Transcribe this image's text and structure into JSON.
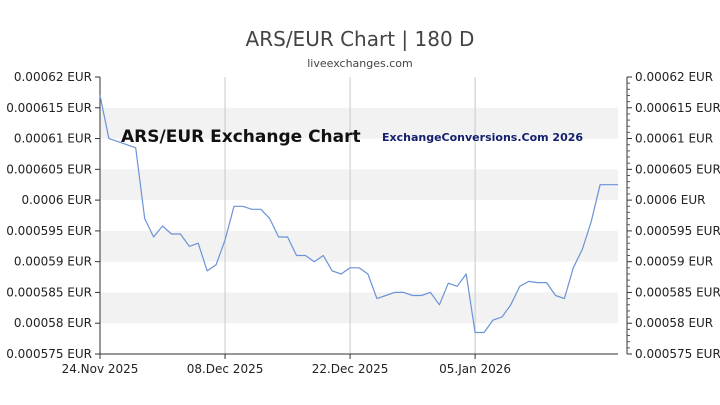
{
  "header": {
    "title": "ARS/EUR Chart | 180 D",
    "subtitle": "liveexchanges.com"
  },
  "watermarks": {
    "left": "ARS/EUR Exchange Chart",
    "right": "ExchangeConversions.Com 2026"
  },
  "colors": {
    "line": "#6b93d6",
    "band": "#f2f2f2",
    "vgrid": "#c8c8c8"
  },
  "chart_data": {
    "type": "line",
    "title": "ARS/EUR Chart | 180 D",
    "subtitle": "liveexchanges.com",
    "ylim": [
      0.000575,
      0.00062
    ],
    "yticks": [
      0.00062,
      0.000615,
      0.00061,
      0.000605,
      0.0006,
      0.000595,
      0.00059,
      0.000585,
      0.00058,
      0.000575
    ],
    "ytick_labels": [
      "0.00062 EUR",
      "0.000615 EUR",
      "0.00061 EUR",
      "0.000605 EUR",
      "0.0006 EUR",
      "0.000595 EUR",
      "0.00059 EUR",
      "0.000585 EUR",
      "0.00058 EUR",
      "0.000575 EUR"
    ],
    "xlim": [
      "2025-11-24",
      "2026-01-21"
    ],
    "xticks": [
      "2025-11-24",
      "2025-12-08",
      "2025-12-22",
      "2026-01-05"
    ],
    "xtick_labels": [
      "24.Nov 2025",
      "08.Dec 2025",
      "22.Dec 2025",
      "05.Jan 2026"
    ],
    "grid": "alternating horizontal bands, vertical lines at x ticks",
    "legend": "none",
    "series": [
      {
        "x": [
          "2025-11-24",
          "2025-11-25",
          "2025-11-26",
          "2025-11-27",
          "2025-11-28",
          "2025-11-29",
          "2025-11-30",
          "2025-12-01",
          "2025-12-02",
          "2025-12-03",
          "2025-12-04",
          "2025-12-05",
          "2025-12-06",
          "2025-12-07",
          "2025-12-08",
          "2025-12-09",
          "2025-12-10",
          "2025-12-11",
          "2025-12-12",
          "2025-12-13",
          "2025-12-14",
          "2025-12-15",
          "2025-12-16",
          "2025-12-17",
          "2025-12-18",
          "2025-12-19",
          "2025-12-20",
          "2025-12-21",
          "2025-12-22",
          "2025-12-23",
          "2025-12-24",
          "2025-12-25",
          "2025-12-26",
          "2025-12-27",
          "2025-12-28",
          "2025-12-29",
          "2025-12-30",
          "2025-12-31",
          "2026-01-01",
          "2026-01-02",
          "2026-01-03",
          "2026-01-04",
          "2026-01-05",
          "2026-01-06",
          "2026-01-07",
          "2026-01-08",
          "2026-01-09",
          "2026-01-10",
          "2026-01-11",
          "2026-01-12",
          "2026-01-13",
          "2026-01-14",
          "2026-01-15",
          "2026-01-16",
          "2026-01-17",
          "2026-01-18",
          "2026-01-19",
          "2026-01-20",
          "2026-01-21"
        ],
        "values": [
          0.000617,
          0.00061,
          0.0006095,
          0.000609,
          0.0006085,
          0.000597,
          0.000594,
          0.0005958,
          0.0005945,
          0.0005945,
          0.0005925,
          0.000593,
          0.0005885,
          0.0005895,
          0.0005935,
          0.000599,
          0.000599,
          0.0005985,
          0.0005985,
          0.000597,
          0.000594,
          0.000594,
          0.000591,
          0.000591,
          0.00059,
          0.000591,
          0.0005885,
          0.000588,
          0.000589,
          0.000589,
          0.000588,
          0.000584,
          0.0005845,
          0.000585,
          0.000585,
          0.0005845,
          0.0005845,
          0.000585,
          0.000583,
          0.0005865,
          0.000586,
          0.000588,
          0.0005785,
          0.0005785,
          0.0005805,
          0.000581,
          0.000583,
          0.000586,
          0.0005868,
          0.0005866,
          0.0005866,
          0.0005845,
          0.000584,
          0.000589,
          0.000592,
          0.0005965,
          0.0006025,
          0.0006025,
          0.0006025
        ]
      }
    ]
  }
}
